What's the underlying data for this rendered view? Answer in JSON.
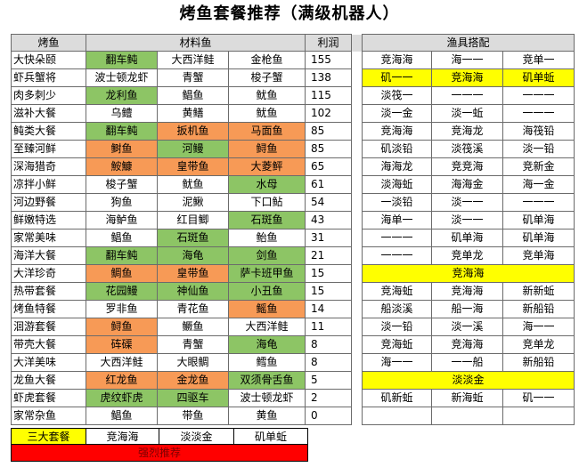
{
  "title": "烤鱼套餐推荐（满级机器人）",
  "colors": {
    "green": "#8dc565",
    "orange": "#f79a56",
    "yellow": "#ffff00",
    "red": "#ff0000",
    "header": "#dcdcdc"
  },
  "headers": {
    "dish": "烤鱼",
    "ingredients": "材料鱼",
    "profit": "利润",
    "gear": "渔具搭配"
  },
  "rows": [
    {
      "dish": "大快朵颐",
      "fish": [
        "翻车鲀",
        "大西洋鲑",
        "金枪鱼"
      ],
      "fc": [
        "g",
        "",
        ""
      ],
      "profit": "155",
      "gear": [
        "竞海海",
        "海一一",
        "竞单一"
      ],
      "gy": false
    },
    {
      "dish": "虾兵蟹将",
      "fish": [
        "波士顿龙虾",
        "青蟹",
        "梭子蟹"
      ],
      "fc": [
        "",
        "",
        ""
      ],
      "profit": "138",
      "gear": [
        "矶一一",
        "竞海海",
        "矶单蚯"
      ],
      "gy": true
    },
    {
      "dish": "肉多刺少",
      "fish": [
        "龙利鱼",
        "鲳鱼",
        "鱿鱼"
      ],
      "fc": [
        "g",
        "",
        ""
      ],
      "profit": "115",
      "gear": [
        "淡筏一",
        "一一一",
        "一一一"
      ],
      "gy": false
    },
    {
      "dish": "滋补大餐",
      "fish": [
        "乌鳢",
        "黄鳝",
        "鱿鱼"
      ],
      "fc": [
        "",
        "",
        ""
      ],
      "profit": "102",
      "gear": [
        "淡一金",
        "淡一蚯",
        "一一一"
      ],
      "gy": false
    },
    {
      "dish": "鲀类大餐",
      "fish": [
        "翻车鲀",
        "扳机鱼",
        "马面鱼"
      ],
      "fc": [
        "g",
        "o",
        "o"
      ],
      "profit": "85",
      "gear": [
        "竞海海",
        "竞海龙",
        "海筏铅"
      ],
      "gy": false
    },
    {
      "dish": "至臻河鲜",
      "fish": [
        "鲥鱼",
        "河鳗",
        "鲟鱼"
      ],
      "fc": [
        "o",
        "g",
        "o"
      ],
      "profit": "85",
      "gear": [
        "矶淡铅",
        "淡筏溪",
        "淡一铅"
      ],
      "gy": false
    },
    {
      "dish": "深海猎奇",
      "fish": [
        "鮟鱇",
        "皇带鱼",
        "大菱鲆"
      ],
      "fc": [
        "o",
        "o",
        "o"
      ],
      "profit": "65",
      "gear": [
        "海海龙",
        "竞竞海",
        "竞新金"
      ],
      "gy": false
    },
    {
      "dish": "凉拌小鲜",
      "fish": [
        "梭子蟹",
        "鱿鱼",
        "水母"
      ],
      "fc": [
        "",
        "",
        "g"
      ],
      "profit": "61",
      "gear": [
        "淡海蚯",
        "海海金",
        "海一金"
      ],
      "gy": false
    },
    {
      "dish": "河边野餐",
      "fish": [
        "狗鱼",
        "泥鳅",
        "下口鲇"
      ],
      "fc": [
        "",
        "",
        ""
      ],
      "profit": "54",
      "gear": [
        "一淡铅",
        "淡一一",
        "一一一"
      ],
      "gy": false
    },
    {
      "dish": "鲜嫩特选",
      "fish": [
        "海鲈鱼",
        "红目鲫",
        "石斑鱼"
      ],
      "fc": [
        "",
        "",
        "g"
      ],
      "profit": "43",
      "gear": [
        "海单一",
        "淡一一",
        "矶单海"
      ],
      "gy": false
    },
    {
      "dish": "家常美味",
      "fish": [
        "鲳鱼",
        "石斑鱼",
        "鲐鱼"
      ],
      "fc": [
        "",
        "g",
        ""
      ],
      "profit": "31",
      "gear": [
        "一一一",
        "矶单海",
        "矶单海"
      ],
      "gy": false
    },
    {
      "dish": "海洋大餐",
      "fish": [
        "翻车鲀",
        "海龟",
        "剑鱼"
      ],
      "fc": [
        "g",
        "g",
        "g"
      ],
      "profit": "21",
      "gear": [
        "一一一",
        "竞单龙",
        "竞单海"
      ],
      "gy": false
    },
    {
      "dish": "大洋珍奇",
      "fish": [
        "鲷鱼",
        "皇带鱼",
        "萨卡班甲鱼"
      ],
      "fc": [
        "o",
        "o",
        "g"
      ],
      "profit": "15",
      "gear": [
        "竞海海"
      ],
      "gy": true
    },
    {
      "dish": "热带套餐",
      "fish": [
        "花园鳗",
        "神仙鱼",
        "小丑鱼"
      ],
      "fc": [
        "g",
        "g",
        "g"
      ],
      "profit": "15",
      "gear": [
        "竞海蚯",
        "竞海海",
        "新新蚯"
      ],
      "gy": false
    },
    {
      "dish": "烤鱼特餐",
      "fish": [
        "罗非鱼",
        "青花鱼",
        "鳐鱼"
      ],
      "fc": [
        "",
        "",
        "o"
      ],
      "profit": "14",
      "gear": [
        "船淡溪",
        "船一海",
        "新船铅"
      ],
      "gy": false
    },
    {
      "dish": "洄游套餐",
      "fish": [
        "鲟鱼",
        "鳜鱼",
        "大西洋鲑"
      ],
      "fc": [
        "o",
        "",
        ""
      ],
      "profit": "11",
      "gear": [
        "淡一铅",
        "淡一溪",
        "海一一"
      ],
      "gy": false
    },
    {
      "dish": "带壳大餐",
      "fish": [
        "砗磲",
        "青蟹",
        "海龟"
      ],
      "fc": [
        "o",
        "",
        "g"
      ],
      "profit": "8",
      "gear": [
        "竞海蚯",
        "竞海海",
        "竞单龙"
      ],
      "gy": false
    },
    {
      "dish": "大洋美味",
      "fish": [
        "大西洋鲑",
        "大眼鲷",
        "鳕鱼"
      ],
      "fc": [
        "",
        "",
        ""
      ],
      "profit": "8",
      "gear": [
        "海一一",
        "一一船",
        "新船铅"
      ],
      "gy": false
    },
    {
      "dish": "龙鱼大餐",
      "fish": [
        "红龙鱼",
        "金龙鱼",
        "双须骨舌鱼"
      ],
      "fc": [
        "o",
        "o",
        "g"
      ],
      "profit": "5",
      "gear": [
        "淡淡金"
      ],
      "gy": true
    },
    {
      "dish": "虾虎套餐",
      "fish": [
        "虎纹虾虎",
        "四驱车",
        "波士顿龙虾"
      ],
      "fc": [
        "g",
        "g",
        ""
      ],
      "profit": "2",
      "gear": [
        "矶新蚯",
        "新海蚯",
        "矶一一"
      ],
      "gy": false
    },
    {
      "dish": "家常杂鱼",
      "fish": [
        "鲳鱼",
        "带鱼",
        "黄鱼"
      ],
      "fc": [
        "",
        "",
        ""
      ],
      "profit": "0",
      "gear": [],
      "gy": false
    }
  ],
  "bottom": {
    "label": "三大套餐",
    "items": [
      "竞海海",
      "淡淡金",
      "矶单蚯"
    ],
    "note": "强烈推荐"
  }
}
